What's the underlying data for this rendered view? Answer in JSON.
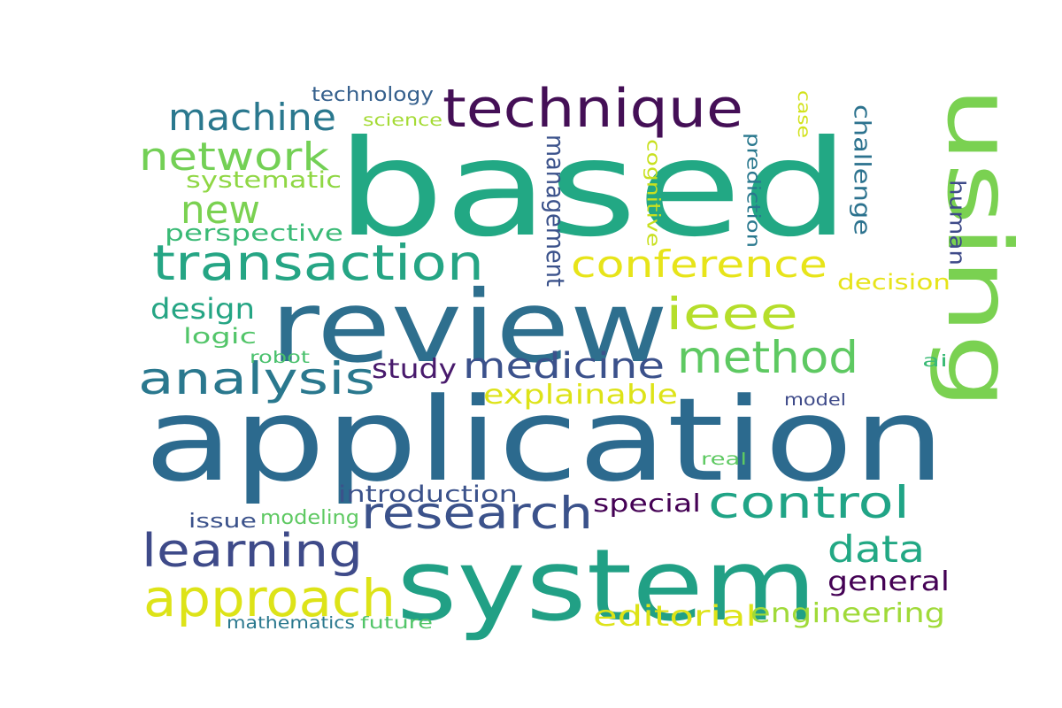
{
  "words": [
    {
      "text": "based",
      "color": "#22a884"
    },
    {
      "text": "application",
      "color": "#2c6a8e"
    },
    {
      "text": "review",
      "color": "#2e6f8e"
    },
    {
      "text": "system",
      "color": "#21a085"
    },
    {
      "text": "using",
      "color": "#7ad151"
    },
    {
      "text": "technique",
      "color": "#440f56"
    },
    {
      "text": "transaction",
      "color": "#25a584"
    },
    {
      "text": "research",
      "color": "#3b528b"
    },
    {
      "text": "approach",
      "color": "#dde318"
    },
    {
      "text": "learning",
      "color": "#3e4a89"
    },
    {
      "text": "control",
      "color": "#20a486"
    },
    {
      "text": "medicine",
      "color": "#3b518b"
    },
    {
      "text": "analysis",
      "color": "#2a788e"
    },
    {
      "text": "method",
      "color": "#5ec962"
    },
    {
      "text": "ieee",
      "color": "#b5de2b"
    },
    {
      "text": "conference",
      "color": "#e7e419"
    },
    {
      "text": "machine",
      "color": "#2a788e"
    },
    {
      "text": "network",
      "color": "#73d055"
    },
    {
      "text": "new",
      "color": "#7ad151"
    },
    {
      "text": "data",
      "color": "#22a884"
    },
    {
      "text": "management",
      "color": "#3b528b"
    },
    {
      "text": "editorial",
      "color": "#dde318"
    },
    {
      "text": "engineering",
      "color": "#a0da39"
    },
    {
      "text": "general",
      "color": "#440154"
    },
    {
      "text": "design",
      "color": "#25a584"
    },
    {
      "text": "study",
      "color": "#481a6c"
    },
    {
      "text": "explainable",
      "color": "#dde318"
    },
    {
      "text": "challenge",
      "color": "#2c728e"
    },
    {
      "text": "special",
      "color": "#440154"
    },
    {
      "text": "introduction",
      "color": "#3b528b"
    },
    {
      "text": "systematic",
      "color": "#8fd744"
    },
    {
      "text": "perspective",
      "color": "#3aba76"
    },
    {
      "text": "human",
      "color": "#3e4a89"
    },
    {
      "text": "decision",
      "color": "#e7e419"
    },
    {
      "text": "technology",
      "color": "#35608d"
    },
    {
      "text": "logic",
      "color": "#52c569"
    },
    {
      "text": "cognitive",
      "color": "#c8e020"
    },
    {
      "text": "prediction",
      "color": "#2a788e"
    },
    {
      "text": "issue",
      "color": "#3b528b"
    },
    {
      "text": "modeling",
      "color": "#5ec962"
    },
    {
      "text": "mathematics",
      "color": "#2a788e"
    },
    {
      "text": "future",
      "color": "#52c569"
    },
    {
      "text": "robot",
      "color": "#4ac16d"
    },
    {
      "text": "science",
      "color": "#a5db36"
    },
    {
      "text": "case",
      "color": "#d2e21b"
    },
    {
      "text": "model",
      "color": "#3e4a89"
    },
    {
      "text": "ai",
      "color": "#3aba76"
    },
    {
      "text": "real",
      "color": "#5ec962"
    }
  ]
}
